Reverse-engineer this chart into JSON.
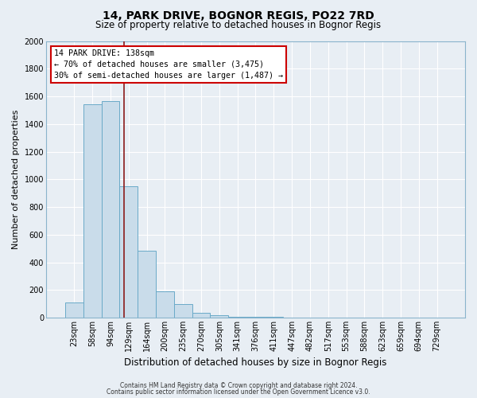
{
  "title": "14, PARK DRIVE, BOGNOR REGIS, PO22 7RD",
  "subtitle": "Size of property relative to detached houses in Bognor Regis",
  "xlabel": "Distribution of detached houses by size in Bognor Regis",
  "ylabel": "Number of detached properties",
  "bar_labels": [
    "23sqm",
    "58sqm",
    "94sqm",
    "129sqm",
    "164sqm",
    "200sqm",
    "235sqm",
    "270sqm",
    "305sqm",
    "341sqm",
    "376sqm",
    "411sqm",
    "447sqm",
    "482sqm",
    "517sqm",
    "553sqm",
    "588sqm",
    "623sqm",
    "659sqm",
    "694sqm",
    "729sqm"
  ],
  "bar_values": [
    110,
    1540,
    1565,
    950,
    485,
    190,
    100,
    35,
    18,
    8,
    5,
    3,
    0,
    0,
    0,
    0,
    0,
    0,
    0,
    0,
    0
  ],
  "bar_color": "#c9dcea",
  "bar_edge_color": "#6aaac8",
  "ylim": [
    0,
    2000
  ],
  "yticks": [
    0,
    200,
    400,
    600,
    800,
    1000,
    1200,
    1400,
    1600,
    1800,
    2000
  ],
  "vline_x": 3.26,
  "vline_color": "#8b1a1a",
  "annotation_title": "14 PARK DRIVE: 138sqm",
  "annotation_line1": "← 70% of detached houses are smaller (3,475)",
  "annotation_line2": "30% of semi-detached houses are larger (1,487) →",
  "annotation_box_color": "#ffffff",
  "annotation_box_edge": "#cc0000",
  "footer1": "Contains HM Land Registry data © Crown copyright and database right 2024.",
  "footer2": "Contains public sector information licensed under the Open Government Licence v3.0.",
  "background_color": "#e8eef4",
  "plot_background": "#e8eef4",
  "grid_color": "#ffffff",
  "title_fontsize": 10,
  "subtitle_fontsize": 8.5,
  "xlabel_fontsize": 8.5,
  "ylabel_fontsize": 8,
  "tick_fontsize": 7,
  "footer_fontsize": 5.5
}
